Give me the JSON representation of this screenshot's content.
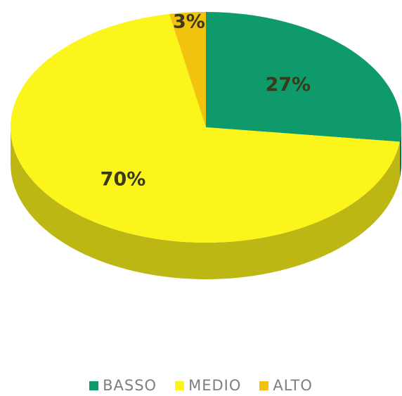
{
  "chart_data": {
    "type": "pie",
    "categories": [
      "BASSO",
      "MEDIO",
      "ALTO"
    ],
    "values": [
      27,
      70,
      3
    ],
    "data_labels": [
      "27%",
      "70%",
      "3%"
    ],
    "colors": [
      "#0e9a6b",
      "#fbf51c",
      "#f2c30e"
    ],
    "side_colors": [
      "#0a6f4d",
      "#bdb714",
      "#b89210"
    ],
    "three_d": true,
    "start_angle_deg": 0,
    "direction": "clockwise",
    "legend_placement": "bottom"
  },
  "legend": {
    "items": [
      {
        "label": "BASSO",
        "color": "#0e9a6b"
      },
      {
        "label": "MEDIO",
        "color": "#fbf51c"
      },
      {
        "label": "ALTO",
        "color": "#f2c30e"
      }
    ]
  }
}
